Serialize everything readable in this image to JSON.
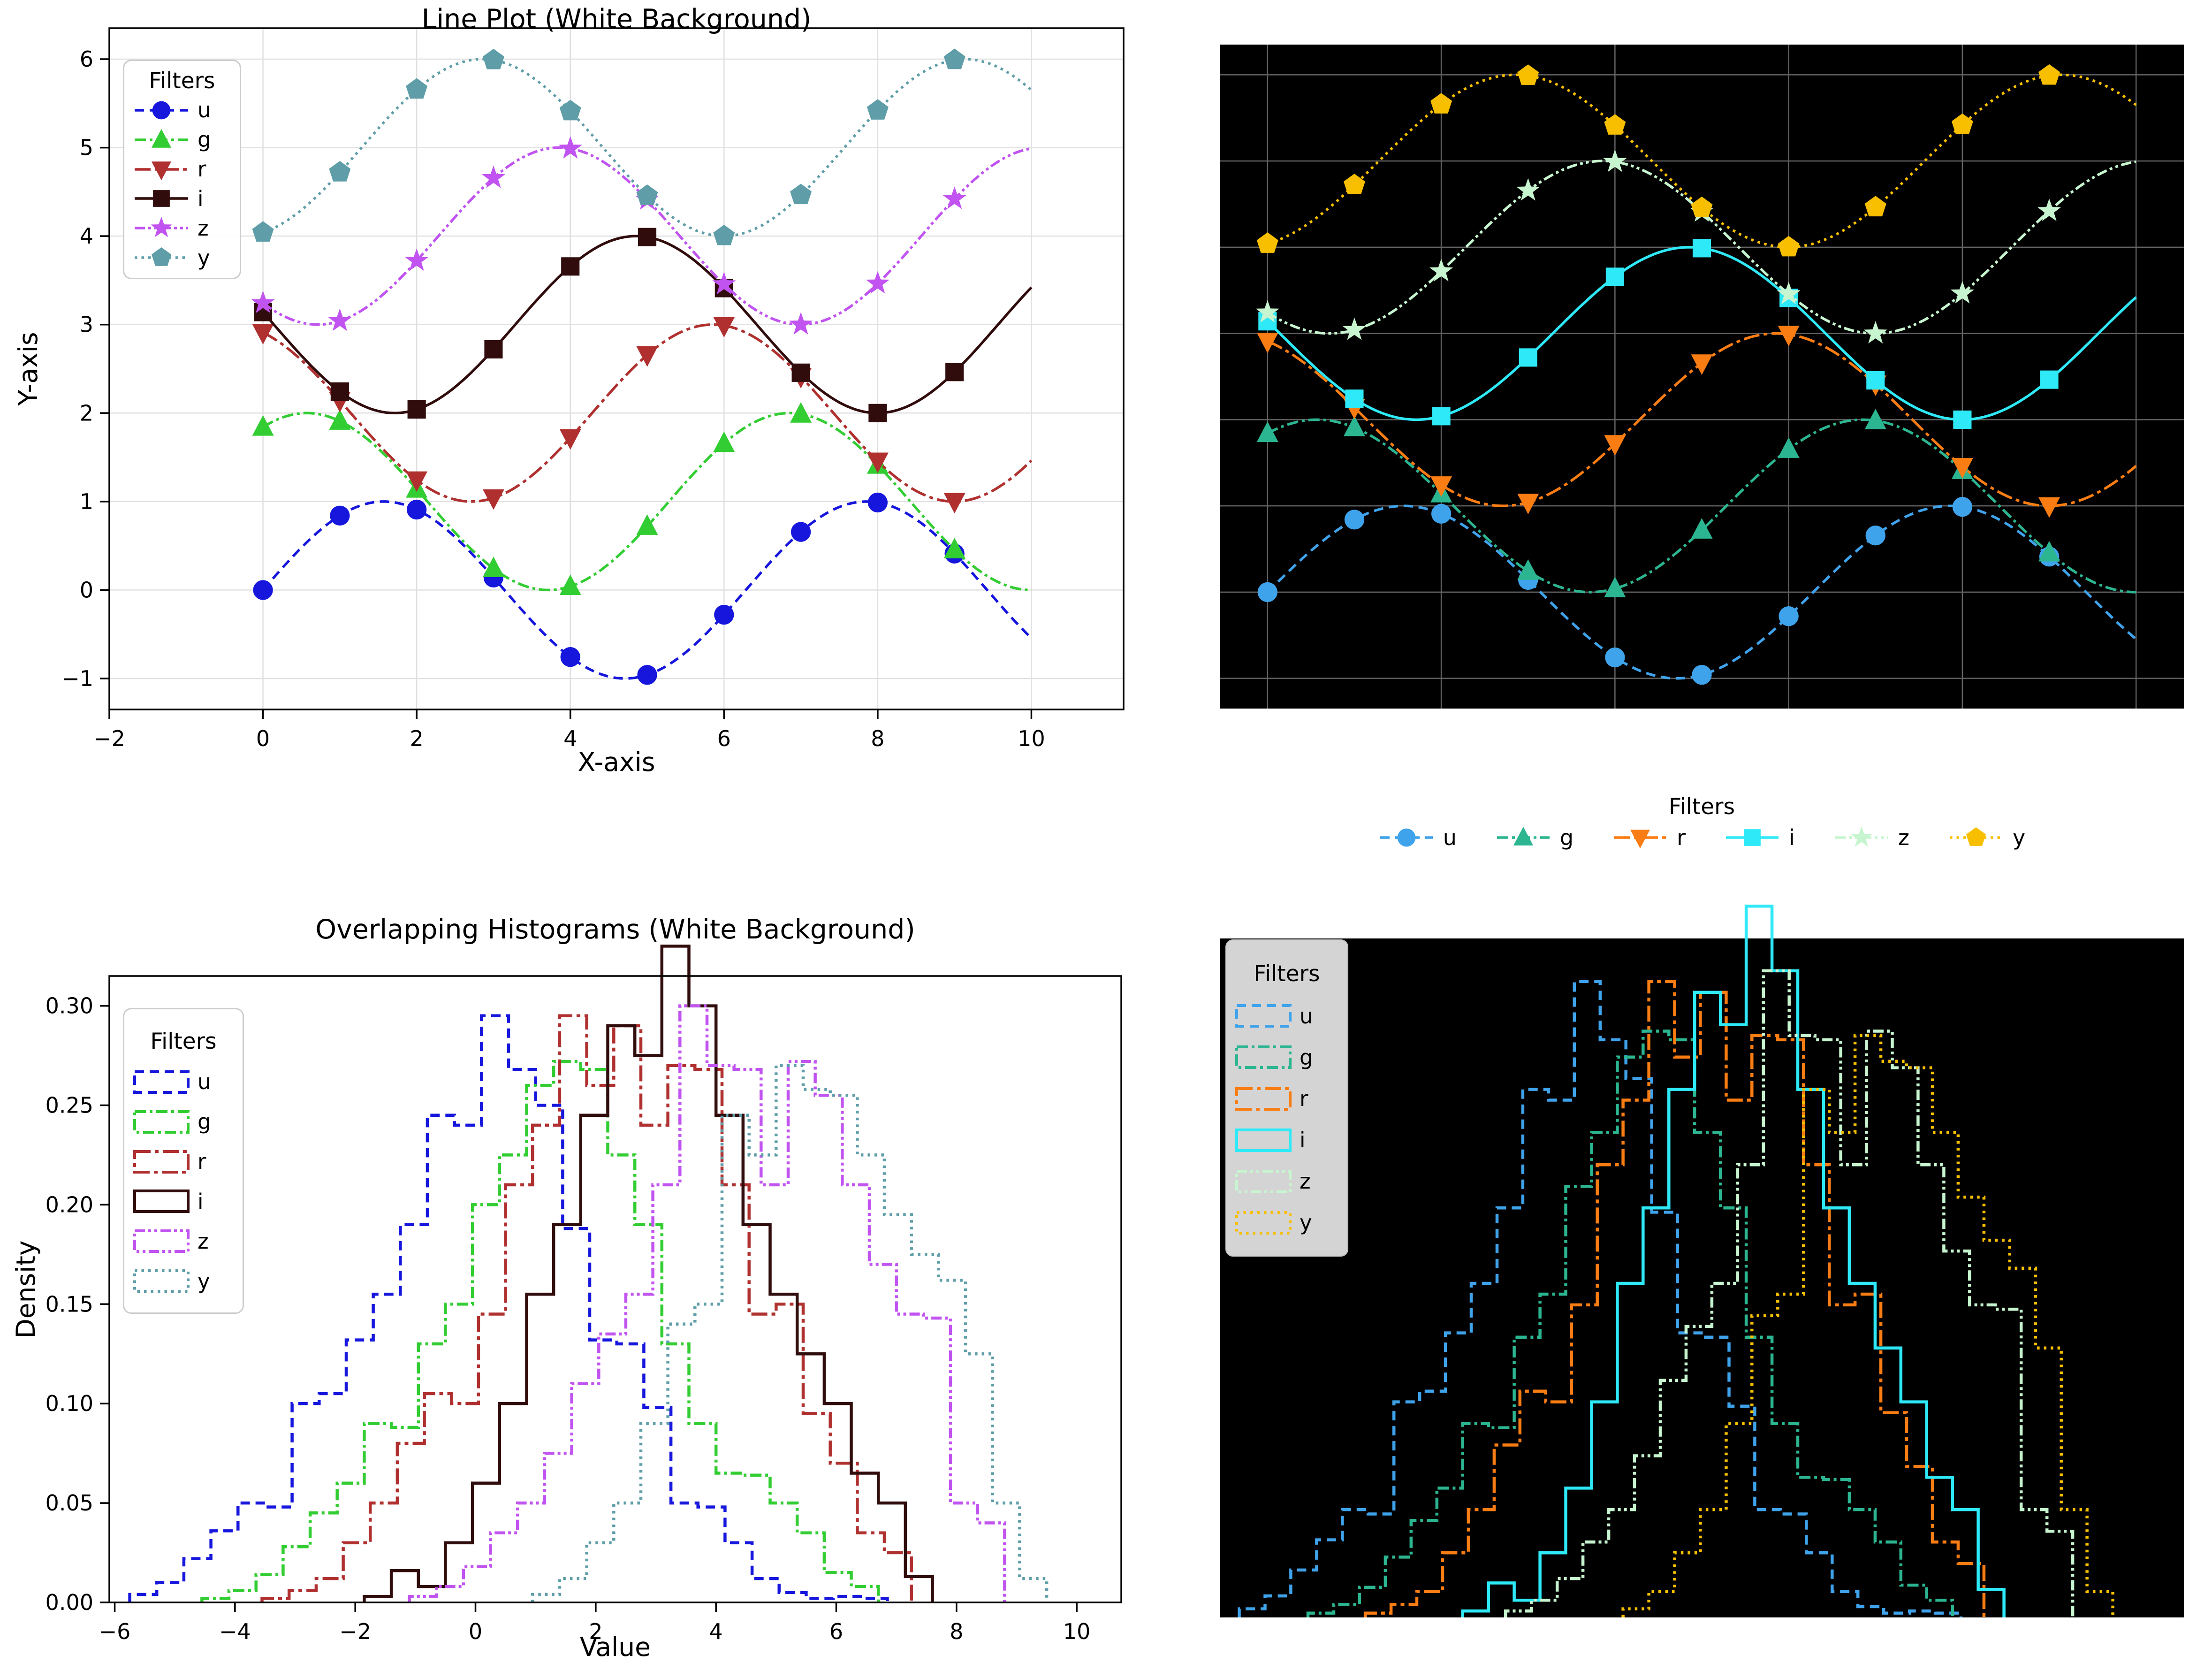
{
  "chart_data": {
    "type": [
      "line",
      "line",
      "histogram-step",
      "histogram-step"
    ],
    "filters": [
      "u",
      "g",
      "r",
      "i",
      "z",
      "y"
    ],
    "styles": {
      "markers": {
        "u": "circle",
        "g": "triangle-up",
        "r": "triangle-down",
        "i": "square",
        "z": "star",
        "y": "pentagon"
      },
      "linestyles": {
        "u": "dashed",
        "g": "dashdot",
        "r": "long-dashdot",
        "i": "solid",
        "z": "dashdotdot",
        "y": "dotted"
      },
      "palette_white": {
        "u": "#1616dd",
        "g": "#32cd32",
        "r": "#b03030",
        "i": "#310c0c",
        "z": "#c153f0",
        "y": "#5f9ea8"
      },
      "palette_dark": {
        "u": "#3fa3ec",
        "g": "#2cb591",
        "r": "#f97d13",
        "i": "#2ee9f7",
        "z": "#c7f5cf",
        "y": "#f7bf00"
      },
      "dark_axes_bg": "#000000",
      "grid_color_white": "#e0e0e0",
      "grid_color_dark": "#636363",
      "legend_bg_dark": "#d4d4d4"
    },
    "line_series": {
      "formula": "y = sin(x + k) + k for x in [0, 10]",
      "x_markers": [
        0,
        1,
        2,
        3,
        4,
        5,
        6,
        7,
        8,
        9
      ],
      "series": [
        {
          "name": "u",
          "k": 0,
          "y_markers": [
            0.0,
            0.841,
            0.909,
            0.141,
            -0.757,
            -0.959,
            -0.279,
            0.657,
            0.989,
            0.412
          ]
        },
        {
          "name": "g",
          "k": 1,
          "y_markers": [
            1.841,
            1.909,
            1.141,
            0.243,
            0.041,
            0.721,
            1.657,
            1.989,
            1.412,
            0.456
          ]
        },
        {
          "name": "r",
          "k": 2,
          "y_markers": [
            2.909,
            2.141,
            1.243,
            1.041,
            1.721,
            2.657,
            2.989,
            2.412,
            1.456,
            1.0
          ]
        },
        {
          "name": "i",
          "k": 3,
          "y_markers": [
            3.141,
            2.243,
            2.041,
            2.721,
            3.657,
            3.989,
            3.412,
            2.456,
            2.0,
            2.464
          ]
        },
        {
          "name": "z",
          "k": 4,
          "y_markers": [
            3.243,
            3.041,
            3.721,
            4.657,
            4.989,
            4.412,
            3.456,
            3.0,
            3.464,
            4.42
          ]
        },
        {
          "name": "y",
          "k": 5,
          "y_markers": [
            4.041,
            4.721,
            5.657,
            5.989,
            5.412,
            4.456,
            4.0,
            4.464,
            5.42,
            5.991
          ]
        }
      ]
    },
    "hist_series": {
      "bin_width": 0.45,
      "series": [
        {
          "name": "u",
          "bin_start": -5.75,
          "densities": [
            0.004,
            0.01,
            0.022,
            0.036,
            0.05,
            0.048,
            0.1,
            0.105,
            0.132,
            0.155,
            0.19,
            0.245,
            0.24,
            0.295,
            0.268,
            0.25,
            0.188,
            0.132,
            0.13,
            0.098,
            0.05,
            0.048,
            0.03,
            0.012,
            0.005,
            0.002,
            0.003,
            0.002
          ]
        },
        {
          "name": "g",
          "bin_start": -4.55,
          "densities": [
            0.002,
            0.006,
            0.014,
            0.028,
            0.045,
            0.06,
            0.09,
            0.088,
            0.13,
            0.15,
            0.2,
            0.225,
            0.26,
            0.272,
            0.268,
            0.225,
            0.19,
            0.13,
            0.09,
            0.065,
            0.064,
            0.05,
            0.035,
            0.015,
            0.008
          ]
        },
        {
          "name": "r",
          "bin_start": -3.55,
          "densities": [
            0.002,
            0.006,
            0.012,
            0.03,
            0.05,
            0.08,
            0.105,
            0.1,
            0.145,
            0.21,
            0.24,
            0.295,
            0.26,
            0.29,
            0.24,
            0.27,
            0.268,
            0.21,
            0.145,
            0.15,
            0.095,
            0.07,
            0.035,
            0.025
          ]
        },
        {
          "name": "i",
          "bin_start": -1.85,
          "densities": [
            0.003,
            0.016,
            0.008,
            0.03,
            0.06,
            0.1,
            0.155,
            0.19,
            0.245,
            0.29,
            0.275,
            0.33,
            0.3,
            0.245,
            0.19,
            0.155,
            0.125,
            0.1,
            0.065,
            0.05,
            0.013
          ]
        },
        {
          "name": "z",
          "bin_start": -1.1,
          "densities": [
            0.003,
            0.008,
            0.018,
            0.035,
            0.05,
            0.075,
            0.11,
            0.135,
            0.155,
            0.21,
            0.3,
            0.27,
            0.268,
            0.21,
            0.272,
            0.255,
            0.21,
            0.17,
            0.145,
            0.143,
            0.05,
            0.04
          ]
        },
        {
          "name": "y",
          "bin_start": 0.95,
          "densities": [
            0.004,
            0.012,
            0.03,
            0.05,
            0.09,
            0.14,
            0.15,
            0.245,
            0.225,
            0.27,
            0.258,
            0.255,
            0.225,
            0.195,
            0.175,
            0.162,
            0.125,
            0.05,
            0.012
          ]
        }
      ]
    },
    "charts": {
      "line_white": {
        "title": "Line Plot (White Background)",
        "xlabel": "X-axis",
        "ylabel": "Y-axis",
        "legend_title": "Filters",
        "legend_location": "upper left",
        "grid": true,
        "xlim": [
          -2,
          11.2
        ],
        "ylim": [
          -1.35,
          6.35
        ],
        "xticks": {
          "values": [
            -2,
            0,
            2,
            4,
            6,
            8,
            10
          ],
          "labels": [
            "−2",
            "0",
            "2",
            "4",
            "6",
            "8",
            "10"
          ]
        },
        "yticks": {
          "values": [
            -1,
            0,
            1,
            2,
            3,
            4,
            5,
            6
          ],
          "labels": [
            "−1",
            "0",
            "1",
            "2",
            "3",
            "4",
            "5",
            "6"
          ]
        }
      },
      "line_dark": {
        "title": "",
        "legend_title": "Filters",
        "legend_location": "below center",
        "grid": true,
        "xlim": [
          -0.55,
          10.55
        ],
        "ylim": [
          -1.35,
          6.35
        ],
        "grid_x": [
          0,
          2,
          4,
          6,
          8,
          10
        ],
        "grid_y": [
          -1,
          0,
          1,
          2,
          3,
          4,
          5,
          6
        ],
        "tick_labels_visible": false
      },
      "hist_white": {
        "title": "Overlapping Histograms (White Background)",
        "xlabel": "Value",
        "ylabel": "Density",
        "legend_title": "Filters",
        "legend_location": "upper left",
        "grid": false,
        "xlim": [
          -6.09,
          10.74
        ],
        "ylim": [
          0,
          0.315
        ],
        "xticks": {
          "values": [
            -6,
            -4,
            -2,
            0,
            2,
            4,
            6,
            8,
            10
          ],
          "labels": [
            "−6",
            "−4",
            "−2",
            "0",
            "2",
            "4",
            "6",
            "8",
            "10"
          ]
        },
        "yticks": {
          "values": [
            0,
            0.05,
            0.1,
            0.15,
            0.2,
            0.25,
            0.3
          ],
          "labels": [
            "0.00",
            "0.05",
            "0.10",
            "0.15",
            "0.20",
            "0.25",
            "0.30"
          ]
        }
      },
      "hist_dark": {
        "title": "",
        "legend_title": "Filters",
        "legend_location": "upper left",
        "grid": false,
        "xlim": [
          -6.09,
          10.74
        ],
        "ylim": [
          0,
          0.315
        ],
        "tick_labels_visible": false
      }
    }
  }
}
